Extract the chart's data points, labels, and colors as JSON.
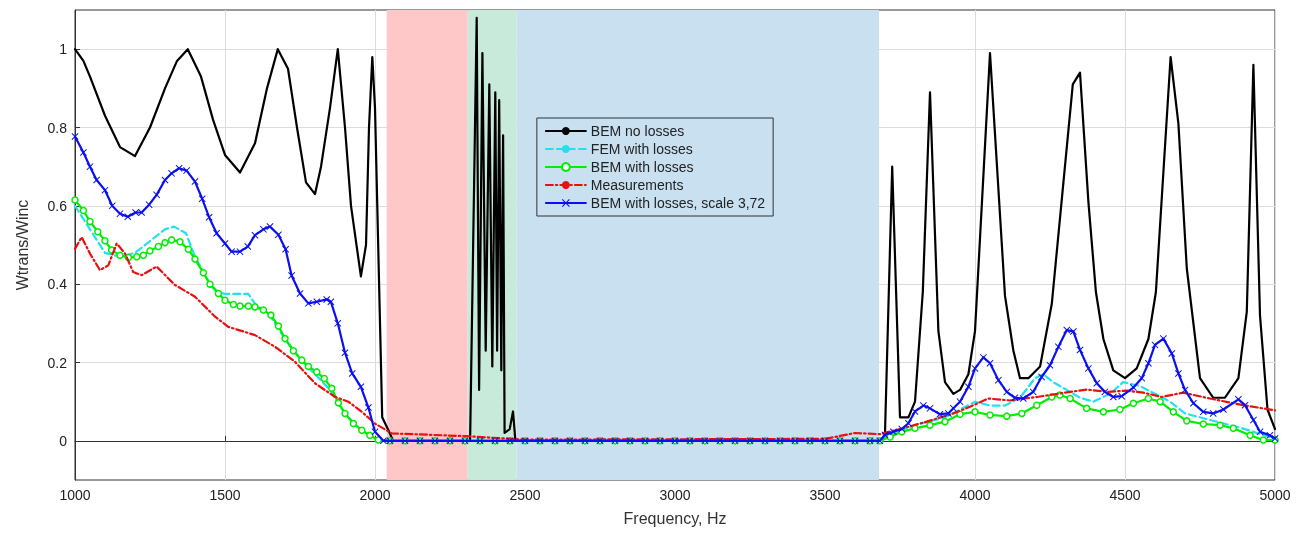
{
  "chart_data": {
    "type": "line",
    "xlabel": "Frequency, Hz",
    "ylabel": "Wtrans/Winc",
    "xlim": [
      1000,
      5000
    ],
    "xticks": [
      1000,
      1500,
      2000,
      2500,
      3000,
      3500,
      4000,
      4500,
      5000
    ],
    "ylim": [
      -0.1,
      1.1
    ],
    "yticks": [
      0,
      0.2,
      0.4,
      0.6,
      0.8,
      1
    ],
    "grid": true,
    "legend": "top",
    "bands": [
      {
        "axis": "x",
        "from": 2039,
        "to": 2309,
        "color": "#ffc8c8"
      },
      {
        "axis": "x",
        "from": 2309,
        "to": 2472,
        "color": "#c8eada"
      },
      {
        "axis": "x",
        "from": 2472,
        "to": 3680,
        "color": "#c8e0f0"
      }
    ],
    "series": [
      {
        "name": "BEM no losses",
        "color": "#000000",
        "marker": "none",
        "line_style": "solid",
        "x": [
          1000,
          1028,
          1050,
          1100,
          1150,
          1200,
          1250,
          1300,
          1340,
          1376,
          1420,
          1460,
          1500,
          1550,
          1600,
          1640,
          1676,
          1710,
          1740,
          1770,
          1800,
          1820,
          1850,
          1876,
          1900,
          1920,
          1953,
          1970,
          1980,
          1991,
          2000,
          2024,
          2049,
          2060,
          2317,
          2339,
          2347,
          2358,
          2369,
          2381,
          2391,
          2401,
          2407,
          2414,
          2421,
          2427,
          2432,
          2449,
          2460,
          2468,
          3690,
          3700,
          3724,
          3750,
          3778,
          3800,
          3826,
          3850,
          3878,
          3900,
          3928,
          3950,
          3978,
          4000,
          4050,
          4100,
          4128,
          4150,
          4178,
          4217,
          4256,
          4326,
          4350,
          4378,
          4403,
          4428,
          4461,
          4500,
          4539,
          4578,
          4603,
          4652,
          4678,
          4706,
          4750,
          4794,
          4833,
          4878,
          4906,
          4928,
          4950,
          4975,
          5000
        ],
        "values": [
          1.0,
          0.97,
          0.93,
          0.83,
          0.75,
          0.727,
          0.8,
          0.9,
          0.97,
          1.0,
          0.93,
          0.82,
          0.73,
          0.685,
          0.76,
          0.9,
          1.0,
          0.95,
          0.8,
          0.66,
          0.63,
          0.7,
          0.85,
          1.0,
          0.8,
          0.6,
          0.42,
          0.5,
          0.8,
          0.98,
          0.85,
          0.06,
          0.02,
          0,
          0,
          1.08,
          0.13,
          0.99,
          0.23,
          0.91,
          0.19,
          0.89,
          0.23,
          0.87,
          0.18,
          0.78,
          0.02,
          0.03,
          0.075,
          0,
          0,
          0.02,
          0.7,
          0.06,
          0.06,
          0.1,
          0.38,
          0.89,
          0.28,
          0.15,
          0.12,
          0.13,
          0.17,
          0.28,
          0.99,
          0.37,
          0.23,
          0.16,
          0.16,
          0.19,
          0.35,
          0.91,
          0.94,
          0.61,
          0.38,
          0.26,
          0.18,
          0.16,
          0.185,
          0.26,
          0.38,
          0.98,
          0.81,
          0.44,
          0.16,
          0.11,
          0.11,
          0.16,
          0.33,
          0.96,
          0.32,
          0.08,
          0.03
        ]
      },
      {
        "name": "FEM with losses",
        "color": "#22e0f0",
        "marker": "none",
        "line_style": "dashed",
        "x": [
          1000,
          1050,
          1100,
          1150,
          1200,
          1250,
          1300,
          1330,
          1370,
          1400,
          1450,
          1478,
          1500,
          1550,
          1578,
          1600,
          1650,
          1700,
          1750,
          1800,
          1850,
          1900,
          1950,
          2000,
          2050,
          3680,
          3700,
          3800,
          3900,
          3950,
          4000,
          4050,
          4100,
          4150,
          4200,
          4228,
          4260,
          4306,
          4350,
          4394,
          4450,
          4494,
          4550,
          4600,
          4650,
          4700,
          4800,
          4900,
          5000
        ],
        "values": [
          0.6,
          0.54,
          0.48,
          0.47,
          0.48,
          0.51,
          0.54,
          0.547,
          0.53,
          0.47,
          0.4,
          0.38,
          0.375,
          0.375,
          0.375,
          0.35,
          0.32,
          0.26,
          0.21,
          0.17,
          0.13,
          0.07,
          0.03,
          0.005,
          0,
          0,
          0.01,
          0.04,
          0.06,
          0.08,
          0.1,
          0.09,
          0.09,
          0.11,
          0.16,
          0.17,
          0.15,
          0.13,
          0.11,
          0.1,
          0.12,
          0.15,
          0.14,
          0.12,
          0.1,
          0.07,
          0.05,
          0.03,
          0.005
        ]
      },
      {
        "name": "BEM with losses",
        "color": "#00ee00",
        "marker": "circle",
        "line_style": "solid",
        "x": [
          1000,
          1028,
          1050,
          1076,
          1100,
          1122,
          1150,
          1178,
          1206,
          1228,
          1250,
          1278,
          1300,
          1322,
          1350,
          1378,
          1400,
          1428,
          1450,
          1478,
          1500,
          1528,
          1550,
          1578,
          1600,
          1628,
          1653,
          1678,
          1700,
          1728,
          1756,
          1778,
          1806,
          1831,
          1856,
          1878,
          1900,
          1928,
          1956,
          1983,
          2011,
          2050,
          2100,
          2150,
          2200,
          2250,
          2300,
          2350,
          2400,
          2450,
          2500,
          2550,
          2600,
          2650,
          2700,
          2750,
          2800,
          2850,
          2900,
          2950,
          3000,
          3050,
          3100,
          3150,
          3200,
          3250,
          3300,
          3350,
          3400,
          3450,
          3500,
          3550,
          3600,
          3650,
          3683,
          3717,
          3756,
          3800,
          3850,
          3900,
          3950,
          4000,
          4050,
          4106,
          4156,
          4206,
          4256,
          4283,
          4317,
          4372,
          4428,
          4483,
          4528,
          4578,
          4617,
          4661,
          4706,
          4761,
          4817,
          4861,
          4917,
          4961,
          5000
        ],
        "values": [
          0.615,
          0.588,
          0.56,
          0.534,
          0.511,
          0.487,
          0.474,
          0.468,
          0.47,
          0.474,
          0.485,
          0.496,
          0.506,
          0.513,
          0.508,
          0.489,
          0.464,
          0.429,
          0.4,
          0.376,
          0.359,
          0.348,
          0.344,
          0.344,
          0.342,
          0.334,
          0.321,
          0.293,
          0.261,
          0.23,
          0.206,
          0.19,
          0.176,
          0.159,
          0.134,
          0.097,
          0.07,
          0.044,
          0.027,
          0.014,
          0.002,
          0,
          0,
          0,
          0,
          0,
          0,
          0,
          0,
          0,
          0,
          0,
          0,
          0,
          0,
          0,
          0,
          0,
          0,
          0,
          0,
          0,
          0,
          0,
          0,
          0,
          0,
          0,
          0,
          0,
          0,
          0,
          0,
          0,
          0,
          0.01,
          0.023,
          0.032,
          0.04,
          0.049,
          0.068,
          0.074,
          0.066,
          0.063,
          0.07,
          0.091,
          0.112,
          0.117,
          0.108,
          0.083,
          0.074,
          0.08,
          0.096,
          0.108,
          0.1,
          0.074,
          0.051,
          0.043,
          0.04,
          0.032,
          0.014,
          0.002,
          0.002
        ]
      },
      {
        "name": "Measurements",
        "color": "#e81010",
        "marker": "none",
        "line_style": "dashdot",
        "x": [
          1000,
          1022,
          1050,
          1083,
          1111,
          1139,
          1167,
          1194,
          1222,
          1272,
          1333,
          1400,
          1467,
          1511,
          1600,
          1667,
          1733,
          1800,
          1867,
          1911,
          1956,
          2000,
          2056,
          2300,
          2500,
          3500,
          3600,
          3683,
          3750,
          3839,
          3928,
          3983,
          4044,
          4117,
          4206,
          4283,
          4372,
          4439,
          4506,
          4561,
          4622,
          4694,
          4783,
          4894,
          5000
        ],
        "values": [
          0.49,
          0.52,
          0.478,
          0.436,
          0.448,
          0.504,
          0.478,
          0.431,
          0.423,
          0.445,
          0.398,
          0.368,
          0.317,
          0.291,
          0.27,
          0.24,
          0.202,
          0.147,
          0.112,
          0.1,
          0.074,
          0.044,
          0.019,
          0.012,
          0.003,
          0.005,
          0.02,
          0.017,
          0.03,
          0.049,
          0.07,
          0.087,
          0.108,
          0.103,
          0.112,
          0.121,
          0.131,
          0.125,
          0.128,
          0.123,
          0.112,
          0.123,
          0.108,
          0.091,
          0.078
        ]
      },
      {
        "name": "BEM with losses, scale 3,72",
        "color": "#0a10f0",
        "marker": "cross",
        "line_style": "solid",
        "x": [
          1000,
          1028,
          1050,
          1072,
          1100,
          1124,
          1150,
          1176,
          1202,
          1222,
          1247,
          1272,
          1300,
          1322,
          1347,
          1372,
          1400,
          1424,
          1447,
          1472,
          1500,
          1522,
          1550,
          1576,
          1600,
          1628,
          1650,
          1678,
          1702,
          1722,
          1750,
          1778,
          1806,
          1839,
          1853,
          1876,
          1900,
          1924,
          1953,
          1978,
          2000,
          2028,
          2050,
          2100,
          2150,
          2200,
          2250,
          2300,
          2350,
          2400,
          2450,
          2500,
          2550,
          2600,
          2650,
          2700,
          2750,
          2800,
          2850,
          2900,
          2950,
          3000,
          3050,
          3100,
          3150,
          3200,
          3250,
          3300,
          3350,
          3400,
          3450,
          3500,
          3550,
          3600,
          3650,
          3683,
          3700,
          3728,
          3756,
          3778,
          3800,
          3828,
          3850,
          3883,
          3911,
          3928,
          3950,
          3978,
          4000,
          4028,
          4050,
          4078,
          4106,
          4133,
          4161,
          4194,
          4222,
          4250,
          4278,
          4306,
          4328,
          4350,
          4378,
          4406,
          4433,
          4461,
          4489,
          4528,
          4556,
          4578,
          4600,
          4628,
          4656,
          4678,
          4700,
          4728,
          4761,
          4794,
          4828,
          4878,
          4900,
          4928,
          4950,
          4983,
          5000
        ],
        "values": [
          0.777,
          0.736,
          0.7,
          0.666,
          0.64,
          0.6,
          0.58,
          0.572,
          0.583,
          0.583,
          0.603,
          0.628,
          0.666,
          0.683,
          0.696,
          0.69,
          0.662,
          0.618,
          0.571,
          0.53,
          0.504,
          0.483,
          0.483,
          0.496,
          0.525,
          0.54,
          0.547,
          0.526,
          0.489,
          0.422,
          0.376,
          0.351,
          0.355,
          0.361,
          0.355,
          0.3,
          0.225,
          0.172,
          0.138,
          0.085,
          0.023,
          0,
          0,
          0,
          0,
          0,
          0,
          0,
          0,
          0,
          0,
          0,
          0,
          0,
          0,
          0,
          0,
          0,
          0,
          0,
          0,
          0,
          0,
          0,
          0,
          0,
          0,
          0,
          0,
          0,
          0,
          0,
          0,
          0,
          0,
          0,
          0.015,
          0.023,
          0.03,
          0.045,
          0.075,
          0.09,
          0.083,
          0.068,
          0.07,
          0.083,
          0.1,
          0.138,
          0.185,
          0.213,
          0.198,
          0.155,
          0.125,
          0.11,
          0.108,
          0.125,
          0.163,
          0.193,
          0.24,
          0.283,
          0.279,
          0.232,
          0.185,
          0.147,
          0.125,
          0.112,
          0.114,
          0.136,
          0.16,
          0.198,
          0.245,
          0.261,
          0.223,
          0.172,
          0.13,
          0.096,
          0.074,
          0.07,
          0.08,
          0.106,
          0.091,
          0.053,
          0.023,
          0.014,
          0.006
        ]
      }
    ]
  }
}
